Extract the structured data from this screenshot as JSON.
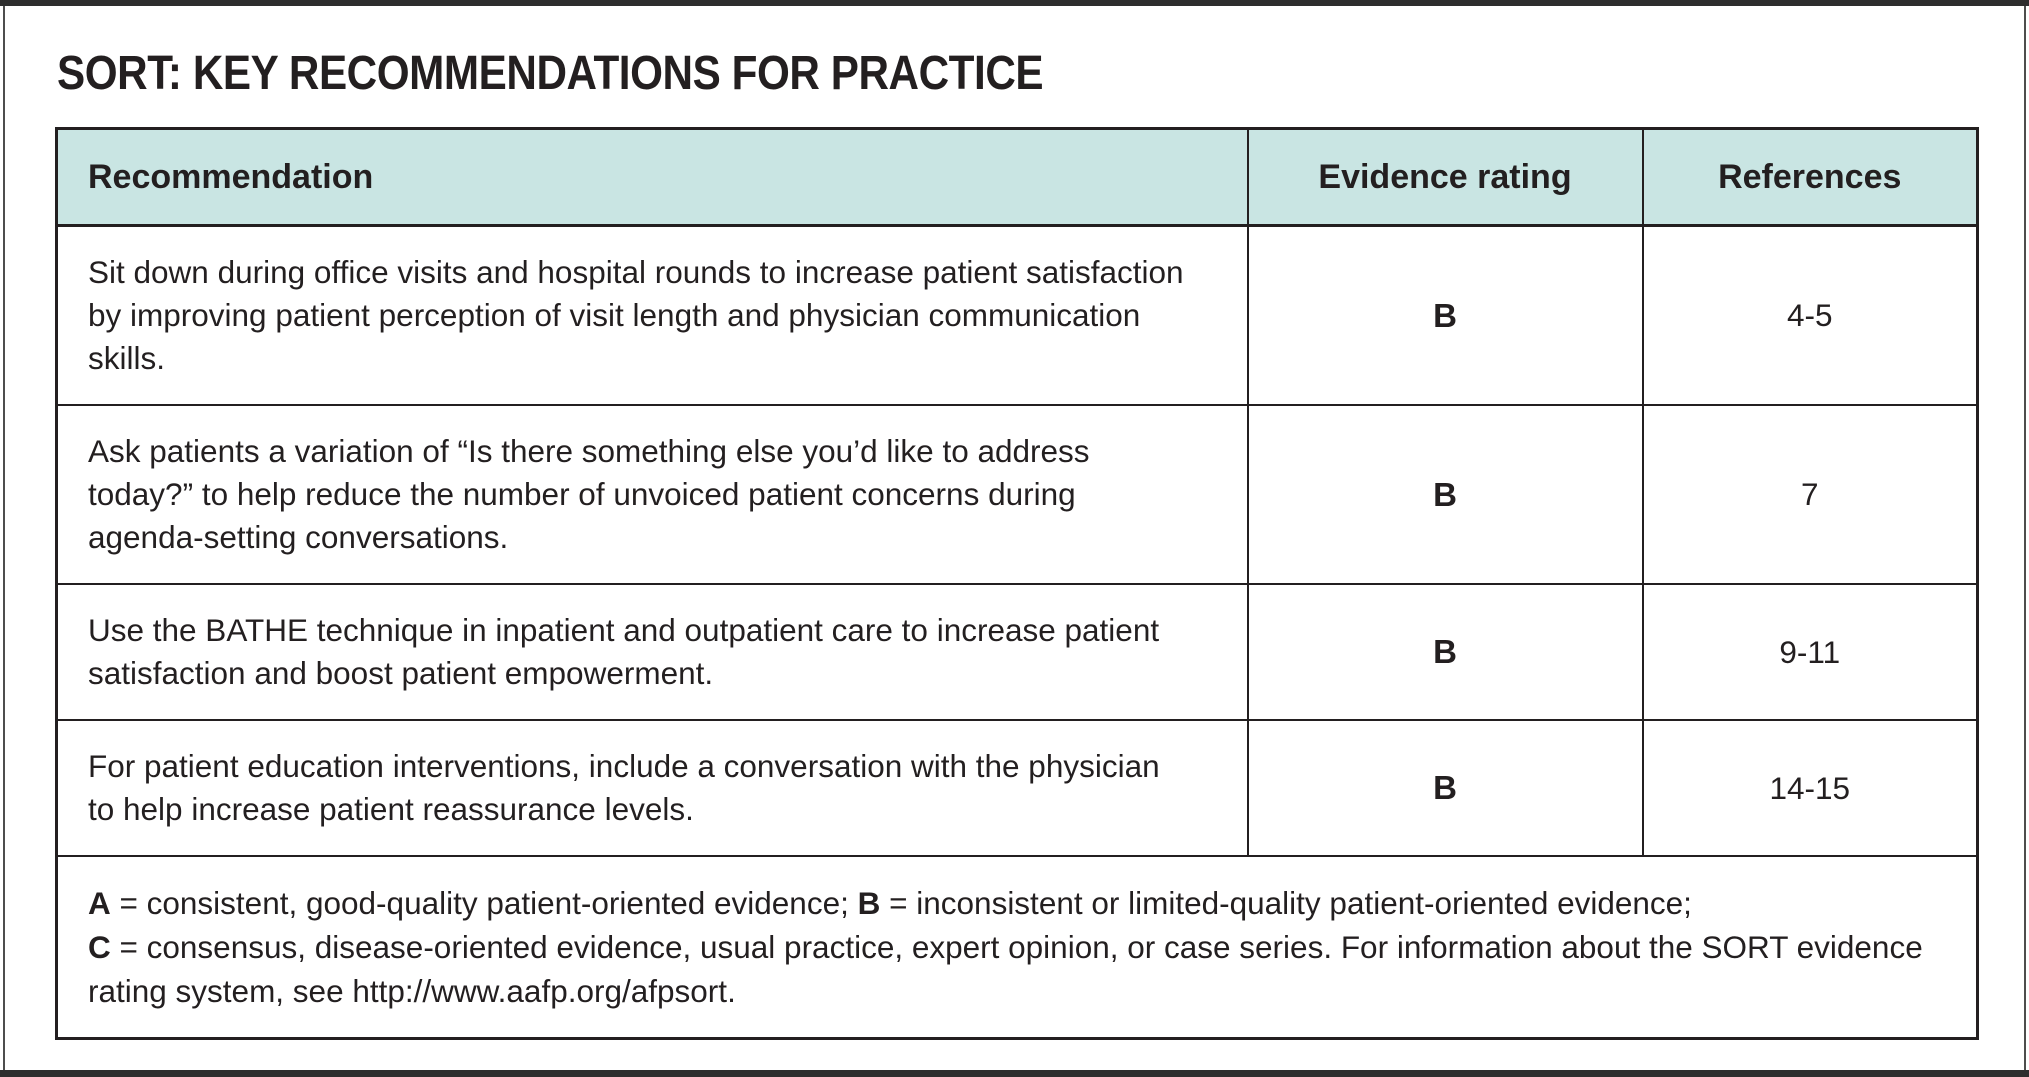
{
  "title": "SORT: KEY RECOMMENDATIONS FOR PRACTICE",
  "colors": {
    "header_bg": "#c9e5e3",
    "table_border": "#231f20",
    "frame_rule": "#2e2e2e",
    "text": "#231f20"
  },
  "table": {
    "columns": [
      "Recommendation",
      "Evidence rating",
      "References"
    ],
    "rows": [
      {
        "recommendation": "Sit down during office visits and hospital rounds to increase patient satisfaction by improving patient perception of visit length and physician communication skills.",
        "rating": "B",
        "references": "4-5"
      },
      {
        "recommendation": "Ask patients a variation of “Is there something else you’d like to address today?” to help reduce the number of unvoiced patient concerns during agenda-setting conversations.",
        "rating": "B",
        "references": "7"
      },
      {
        "recommendation": "Use the BATHE technique in inpatient and outpatient care to increase patient satisfaction and boost patient empowerment.",
        "rating": "B",
        "references": "9-11"
      },
      {
        "recommendation": "For patient education interventions, include a conversation with the physician to help increase patient reassurance levels.",
        "rating": "B",
        "references": "14-15"
      }
    ],
    "footnote": {
      "a_label": "A",
      "a_text": " = consistent, good-quality patient-oriented evidence; ",
      "b_label": "B",
      "b_text": " = inconsistent or limited-quality patient-oriented evidence; ",
      "c_label": "C",
      "c_text": " = consensus, disease-oriented evidence, usual practice, expert opinion, or case series. For information about the SORT evidence rating system, see ",
      "url": "http://www.aafp.org/afpsort",
      "suffix": "."
    }
  }
}
